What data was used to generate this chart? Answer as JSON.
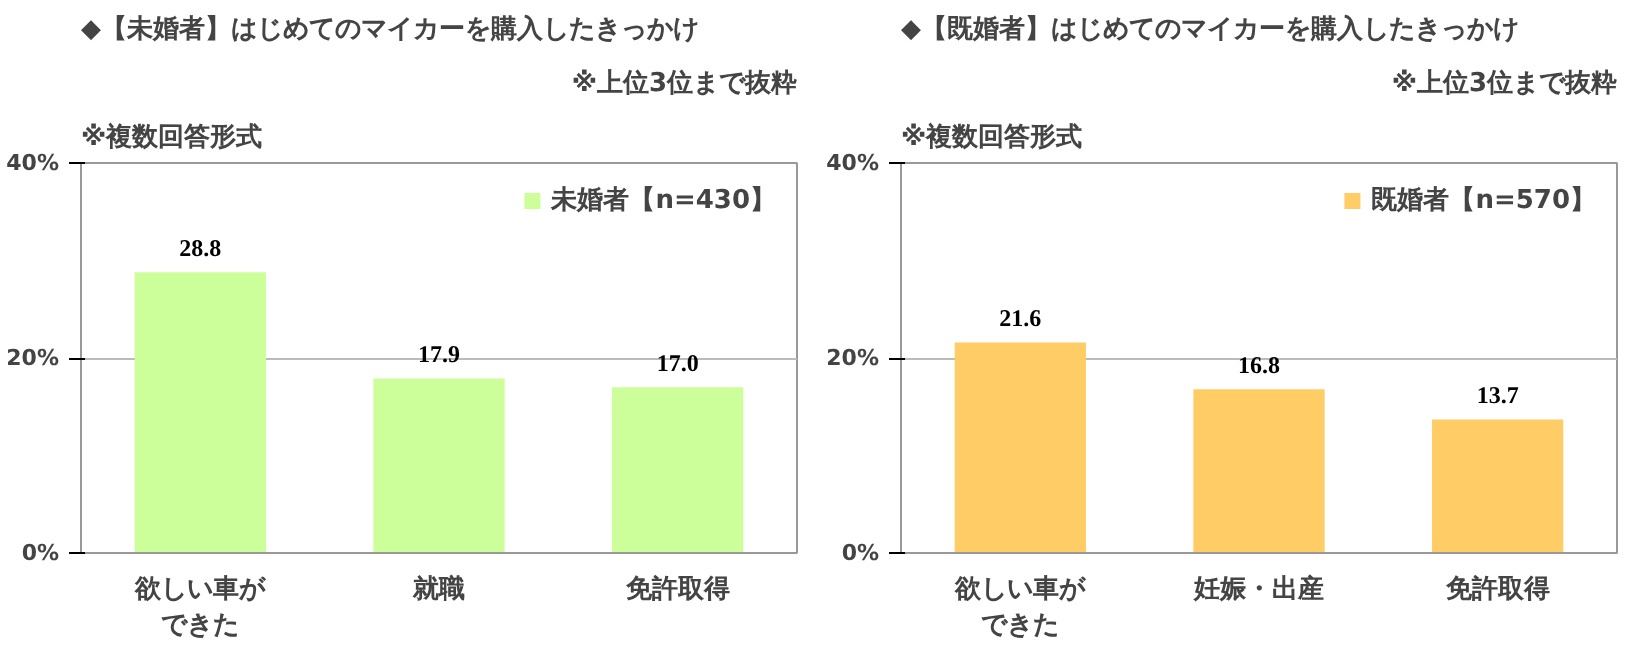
{
  "chart_data": [
    {
      "type": "bar",
      "title": "◆【未婚者】はじめてのマイカーを購入したきっかけ",
      "subtitle": "※複数回答形式",
      "annotations": [
        "※上位3位まで抜粋"
      ],
      "categories": [
        "欲しい車ができた",
        "就職",
        "免許取得"
      ],
      "series": [
        {
          "name": "未婚者【n=430】",
          "color": "#ccff99",
          "values": [
            28.8,
            17.9,
            17.0
          ],
          "value_labels": [
            "28.8",
            "17.9",
            "17.0"
          ]
        }
      ],
      "ylim": [
        0,
        40
      ],
      "yticks": [
        {
          "value": 0,
          "label": "0%"
        },
        {
          "value": 20,
          "label": "20%"
        },
        {
          "value": 40,
          "label": "40%"
        }
      ],
      "grid": "y",
      "legend": "top right",
      "data_labels": true
    },
    {
      "type": "bar",
      "title": "◆【既婚者】はじめてのマイカーを購入したきっかけ",
      "subtitle": "※複数回答形式",
      "annotations": [
        "※上位3位まで抜粋"
      ],
      "categories": [
        "欲しい車ができた",
        "妊娠・出産",
        "免許取得"
      ],
      "series": [
        {
          "name": "既婚者【n=570】",
          "color": "#ffcc66",
          "values": [
            21.6,
            16.8,
            13.7
          ]
        }
      ],
      "ylim": [
        0,
        40
      ],
      "yticks": [
        {
          "value": 0,
          "label": "0%"
        },
        {
          "value": 20,
          "label": "20%"
        },
        {
          "value": 40,
          "label": "40%"
        }
      ],
      "grid": "y",
      "legend": "top right",
      "data_labels": true
    }
  ]
}
